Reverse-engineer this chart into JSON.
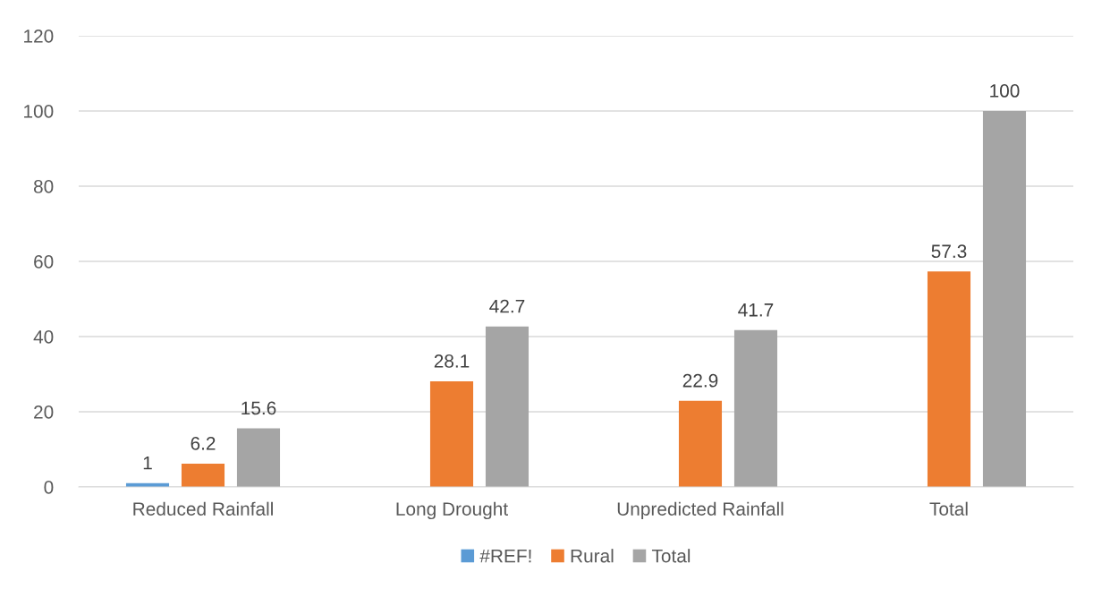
{
  "chart_data": {
    "type": "bar",
    "categories": [
      "Reduced Rainfall",
      "Long Drought",
      "Unpredicted Rainfall",
      "Total"
    ],
    "series": [
      {
        "name": "#REF!",
        "color": "#5b9bd5",
        "values": [
          1,
          null,
          null,
          null
        ]
      },
      {
        "name": "Rural",
        "color": "#ed7d31",
        "values": [
          6.2,
          28.1,
          22.9,
          57.3
        ]
      },
      {
        "name": "Total",
        "color": "#a5a5a5",
        "values": [
          15.6,
          42.7,
          41.7,
          100
        ]
      }
    ],
    "ylim": [
      0,
      120
    ],
    "yticks": [
      0,
      20,
      40,
      60,
      80,
      100,
      120
    ],
    "grid": "y",
    "legend": "bottom",
    "data_labels": true
  }
}
